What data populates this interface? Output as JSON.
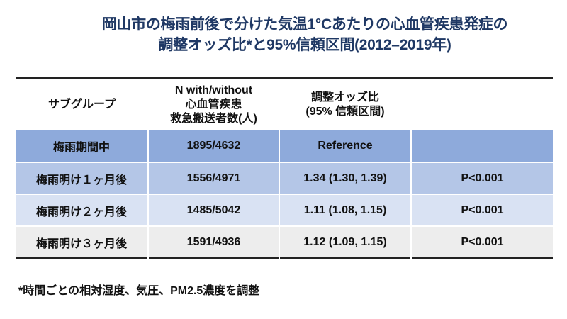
{
  "title": {
    "line1": "岡山市の梅雨前後で分けた気温1°Cあたりの心血管疾患発症の",
    "line2": "調整オッズ比*と95%信頼区間(2012–2019年)"
  },
  "table": {
    "headers": [
      [
        "サブグループ"
      ],
      [
        "N with/without",
        "心血管疾患",
        "救急搬送者数(人)"
      ],
      [
        "調整オッズ比",
        "(95% 信頼区間)"
      ],
      [
        ""
      ]
    ],
    "rows": [
      [
        "梅雨期間中",
        "1895/4632",
        "Reference",
        ""
      ],
      [
        "梅雨明け１ヶ月後",
        "1556/4971",
        "1.34 (1.30, 1.39)",
        "P<0.001"
      ],
      [
        "梅雨明け２ヶ月後",
        "1485/5042",
        "1.11 (1.08, 1.15)",
        "P<0.001"
      ],
      [
        "梅雨明け３ヶ月後",
        "1591/4936",
        "1.12 (1.09, 1.15)",
        "P<0.001"
      ]
    ],
    "row_colors": [
      "#8eaadb",
      "#b4c6e7",
      "#d9e2f3",
      "#ededed"
    ]
  },
  "footnote": "*時間ごとの相対湿度、気圧、PM2.5濃度を調整",
  "colors": {
    "title": "#1f3864"
  }
}
